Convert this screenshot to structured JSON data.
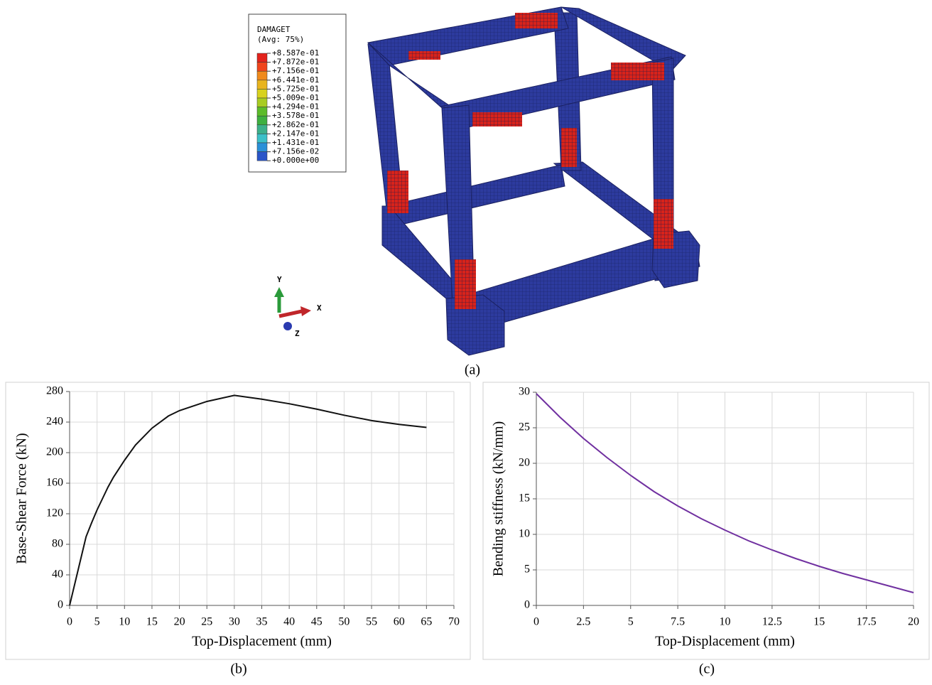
{
  "figure_a": {
    "legend_title": "DAMAGET",
    "legend_subtitle": "(Avg: 75%)",
    "legend_labels": [
      "+8.587e-01",
      "+7.872e-01",
      "+7.156e-01",
      "+6.441e-01",
      "+5.725e-01",
      "+5.009e-01",
      "+4.294e-01",
      "+3.578e-01",
      "+2.862e-01",
      "+2.147e-01",
      "+1.431e-01",
      "+7.156e-02",
      "+0.000e+00"
    ],
    "legend_colors": [
      "#e3231c",
      "#f0451c",
      "#f08a1c",
      "#e8b41e",
      "#d8d21e",
      "#a8cc22",
      "#5cbc2a",
      "#3eb040",
      "#3cb08a",
      "#3cc0c8",
      "#2a90d8",
      "#2a55c8"
    ],
    "axis_y": "Y",
    "axis_x": "X",
    "axis_z": "Z",
    "caption": "(a)"
  },
  "chart_data": [
    {
      "type": "line",
      "caption": "(b)",
      "x_label": "Top-Displacement (mm)",
      "y_label": "Base-Shear Force (kN)",
      "x": [
        0,
        1,
        2,
        3,
        4,
        5,
        6,
        7,
        8,
        10,
        12,
        15,
        18,
        20,
        25,
        30,
        35,
        40,
        45,
        50,
        55,
        60,
        65
      ],
      "values": [
        0,
        30,
        60,
        90,
        108,
        125,
        140,
        155,
        168,
        190,
        210,
        232,
        248,
        255,
        267,
        275,
        270,
        264,
        257,
        249,
        242,
        237,
        233
      ],
      "color": "#111111",
      "xlim": [
        0,
        70
      ],
      "xticks": [
        0,
        5,
        10,
        15,
        20,
        25,
        30,
        35,
        40,
        45,
        50,
        55,
        60,
        65,
        70
      ],
      "ylim": [
        0,
        280
      ],
      "yticks": [
        0,
        40,
        80,
        120,
        160,
        200,
        240,
        280
      ],
      "grid": true
    },
    {
      "type": "line",
      "caption": "(c)",
      "x_label": "Top-Displacement (mm)",
      "y_label": "Bending stiffness (kN/mm)",
      "x": [
        0,
        1.25,
        2.5,
        3.75,
        5,
        6.25,
        7.5,
        8.75,
        10,
        11.25,
        12.5,
        13.75,
        15,
        16.25,
        17.5,
        18.75,
        20
      ],
      "values": [
        29.8,
        26.5,
        23.5,
        20.8,
        18.3,
        16.0,
        14.0,
        12.2,
        10.6,
        9.1,
        7.8,
        6.6,
        5.5,
        4.5,
        3.6,
        2.7,
        1.8
      ],
      "color": "#7030a0",
      "xlim": [
        0,
        20
      ],
      "xticks": [
        0,
        2.5,
        5,
        7.5,
        10,
        12.5,
        15,
        17.5,
        20
      ],
      "ylim": [
        0,
        30
      ],
      "yticks": [
        0,
        5,
        10,
        15,
        20,
        25,
        30
      ],
      "grid": true
    }
  ]
}
